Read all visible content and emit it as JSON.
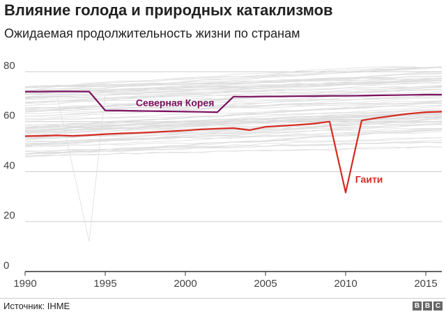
{
  "title": "Влияние голода и природных катаклизмов",
  "subtitle": "Ожидаемая продолжительность жизни по странам",
  "source": "Источник: IHME",
  "logo_letters": [
    "B",
    "B",
    "C"
  ],
  "chart_data": {
    "type": "line",
    "title": "Влияние голода и природных катаклизмов",
    "subtitle": "Ожидаемая продолжительность жизни по странам",
    "xlabel": "",
    "ylabel": "",
    "xlim": [
      1990,
      2016
    ],
    "ylim": [
      0,
      85
    ],
    "x_ticks": [
      1990,
      1995,
      2000,
      2005,
      2010,
      2015
    ],
    "y_ticks": [
      0,
      20,
      40,
      60,
      80
    ],
    "grid": "horizontal",
    "background_series_color": "#dddddd",
    "series": [
      {
        "name": "Северная Корея",
        "color": "#7b1060",
        "x": [
          1990,
          1991,
          1992,
          1993,
          1994,
          1995,
          1996,
          1997,
          1998,
          1999,
          2000,
          2001,
          2002,
          2003,
          2004,
          2005,
          2006,
          2007,
          2008,
          2009,
          2010,
          2011,
          2012,
          2013,
          2014,
          2015,
          2016
        ],
        "values": [
          72.0,
          72.0,
          72.1,
          72.1,
          72.0,
          64.5,
          64.4,
          64.3,
          64.2,
          64.1,
          64.0,
          63.9,
          63.8,
          70.0,
          70.0,
          70.1,
          70.1,
          70.2,
          70.2,
          70.3,
          70.3,
          70.4,
          70.5,
          70.6,
          70.7,
          70.8,
          70.8
        ]
      },
      {
        "name": "Гаити",
        "color": "#d42a20",
        "x": [
          1990,
          1991,
          1992,
          1993,
          1994,
          1995,
          1996,
          1997,
          1998,
          1999,
          2000,
          2001,
          2002,
          2003,
          2004,
          2005,
          2006,
          2007,
          2008,
          2009,
          2010,
          2011,
          2012,
          2013,
          2014,
          2015,
          2016
        ],
        "values": [
          54.2,
          54.3,
          54.5,
          54.3,
          54.6,
          55.0,
          55.3,
          55.5,
          55.8,
          56.1,
          56.5,
          56.9,
          57.2,
          57.4,
          56.6,
          57.9,
          58.3,
          58.7,
          59.2,
          60.0,
          31.6,
          60.5,
          61.5,
          62.4,
          63.2,
          63.8,
          64.0
        ]
      }
    ]
  }
}
